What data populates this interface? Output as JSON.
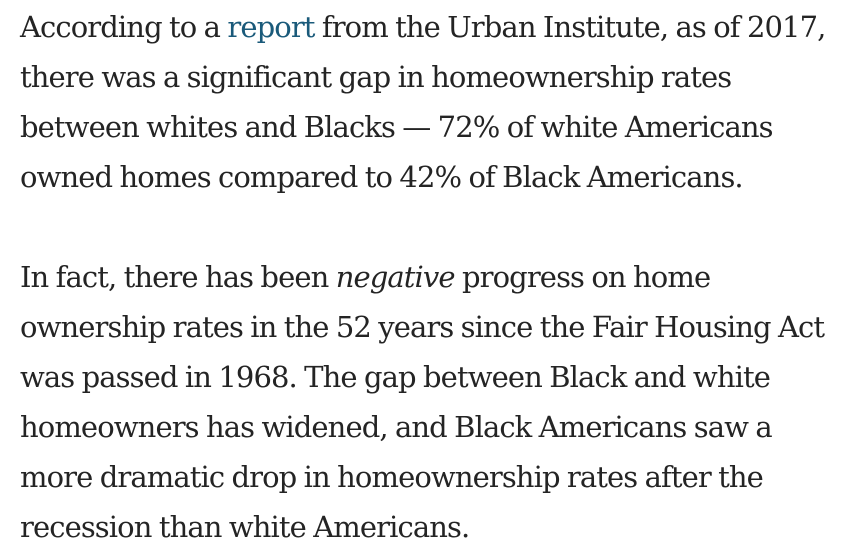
{
  "article": {
    "paragraph_1": {
      "lines": [
        {
          "before": "According to a ",
          "link": "report",
          "after": " from the Urban Institute, as of 2017,"
        },
        "there was a significant gap in homeownership rates",
        "between whites and Blacks — 72% of white Americans",
        "owned homes compared to 42% of Black Americans."
      ]
    },
    "paragraph_2": {
      "lines": [
        {
          "before": "In fact, there has been ",
          "emphasis": "negative",
          "after": " progress on home"
        },
        "ownership rates in the 52 years since the Fair Housing Act",
        "was passed in 1968. The gap between Black and white",
        "homeowners has widened, and Black Americans saw a",
        "more dramatic drop in homeownership rates after the",
        "recession than white Americans."
      ]
    },
    "colors": {
      "text": "#242424",
      "link": "#1a5a7a",
      "background": "#ffffff"
    }
  }
}
